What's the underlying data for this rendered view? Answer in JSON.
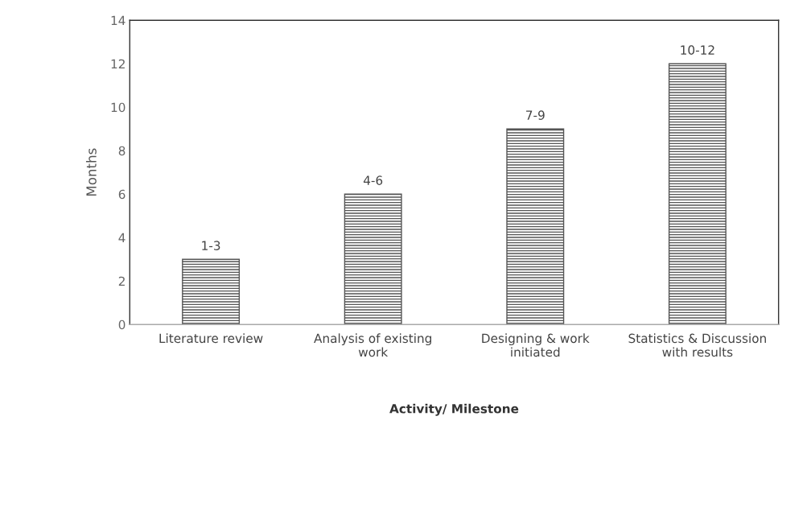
{
  "chart_data": {
    "type": "bar",
    "categories": [
      "Literature review",
      "Analysis of existing\nwork",
      "Designing & work\ninitiated",
      "Statistics & Discussion\nwith results"
    ],
    "values": [
      3,
      6,
      9,
      12
    ],
    "value_labels": [
      "1-3",
      "4-6",
      "7-9",
      "10-12"
    ],
    "color": "#555555",
    "xlabel": "Activity/ Milestone",
    "ylabel": "Months",
    "ylim": [
      0,
      14
    ],
    "yticks": [
      0,
      2,
      4,
      6,
      8,
      10,
      12,
      14
    ],
    "grid": false
  }
}
